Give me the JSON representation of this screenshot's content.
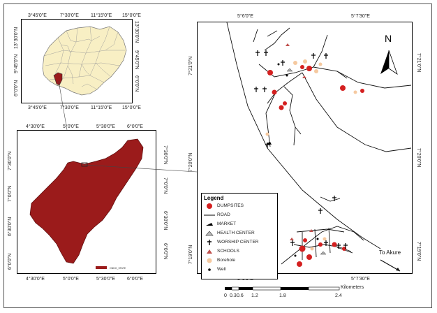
{
  "inset_nigeria": {
    "top_ticks": [
      "3°45'0\"E",
      "7°30'0\"E",
      "11°15'0\"E",
      "15°0'0\"E"
    ],
    "bottom_ticks": [
      "3°45'0\"E",
      "7°30'0\"E",
      "11°15'0\"E",
      "15°0'0\"E"
    ],
    "left_ticks": [
      "13°30'0\"N",
      "9°45'0\"N",
      "6°0'0\"N"
    ],
    "right_ticks": [
      "13°30'0\"N",
      "9°45'0\"N",
      "6°0'0\"N"
    ]
  },
  "inset_state": {
    "top_ticks": [
      "4°30'0\"E",
      "5°0'0\"E",
      "5°30'0\"E",
      "6°0'0\"E"
    ],
    "bottom_ticks": [
      "4°30'0\"E",
      "5°0'0\"E",
      "5°30'0\"E",
      "6°0'0\"E"
    ],
    "left_ticks": [
      "7°30'0\"N",
      "7°0'0\"N",
      "6°30'0\"N",
      "6°0'0\"N"
    ],
    "right_ticks": [
      "7°30'0\"N",
      "7°0'0\"N",
      "6°30'0\"N",
      "6°0'0\"N"
    ],
    "legend_text": "ONDO_STATE"
  },
  "main_map": {
    "top_ticks": [
      "5°6'0\"E",
      "5°7'30\"E"
    ],
    "bottom_ticks": [
      "5°6'0\"E",
      "5°7'30\"E"
    ],
    "left_ticks": [
      "7°21'0\"N",
      "7°20'0\"N",
      "7°19'0\"N"
    ],
    "right_ticks": [
      "7°21'0\"N",
      "7°20'0\"N",
      "7°19'0\"N"
    ],
    "north_label": "N",
    "destination_label": "To Akure"
  },
  "legend": {
    "title": "Legend",
    "items": [
      {
        "symbol": "dumpsite",
        "label": "DUMPSITES",
        "color": "#d42020"
      },
      {
        "symbol": "road",
        "label": "ROAD",
        "color": "#000000"
      },
      {
        "symbol": "market",
        "label": "MARKET",
        "color": "#000000"
      },
      {
        "symbol": "health",
        "label": "HEALTH CENTER",
        "color": "#666666"
      },
      {
        "symbol": "worship",
        "label": "WORSHIP CENTER",
        "color": "#000000"
      },
      {
        "symbol": "school",
        "label": "SCHOOLS",
        "color": "#c0504d"
      },
      {
        "symbol": "borehole",
        "label": "Borehole",
        "color": "#f5c9a0"
      },
      {
        "symbol": "well",
        "label": "Well",
        "color": "#000000"
      }
    ]
  },
  "scale_bar": {
    "labels": [
      "0",
      "0.3",
      "0.6",
      "1.2",
      "1.8",
      "2.4"
    ],
    "unit": "Kilometers"
  },
  "colors": {
    "state_fill": "#9b1b1b",
    "nigeria_fill": "#f8efc4",
    "dumpsite": "#d42020"
  }
}
